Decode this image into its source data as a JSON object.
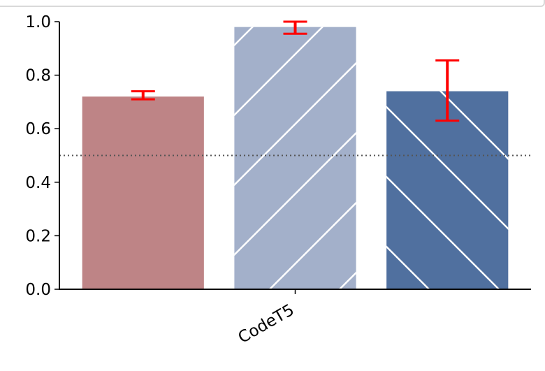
{
  "chart_data": {
    "type": "bar",
    "categories": [
      "CodeT5"
    ],
    "series": [
      {
        "value": 0.72,
        "err_low": 0.71,
        "err_high": 0.74,
        "color": "#be8486",
        "hatch": "none"
      },
      {
        "value": 0.98,
        "err_low": 0.955,
        "err_high": 1.0,
        "color": "#a3b0ca",
        "hatch": "forward"
      },
      {
        "value": 0.74,
        "err_low": 0.63,
        "err_high": 0.855,
        "color": "#50709f",
        "hatch": "back"
      }
    ],
    "reference_line": 0.5,
    "ylim": [
      0,
      1.0
    ],
    "yticks": [
      "0.0",
      "0.2",
      "0.4",
      "0.6",
      "0.8",
      "1.0"
    ],
    "title": "",
    "xlabel": "",
    "ylabel": "",
    "error_bar_color": "#ff0000",
    "legend": "none",
    "grid": false
  }
}
